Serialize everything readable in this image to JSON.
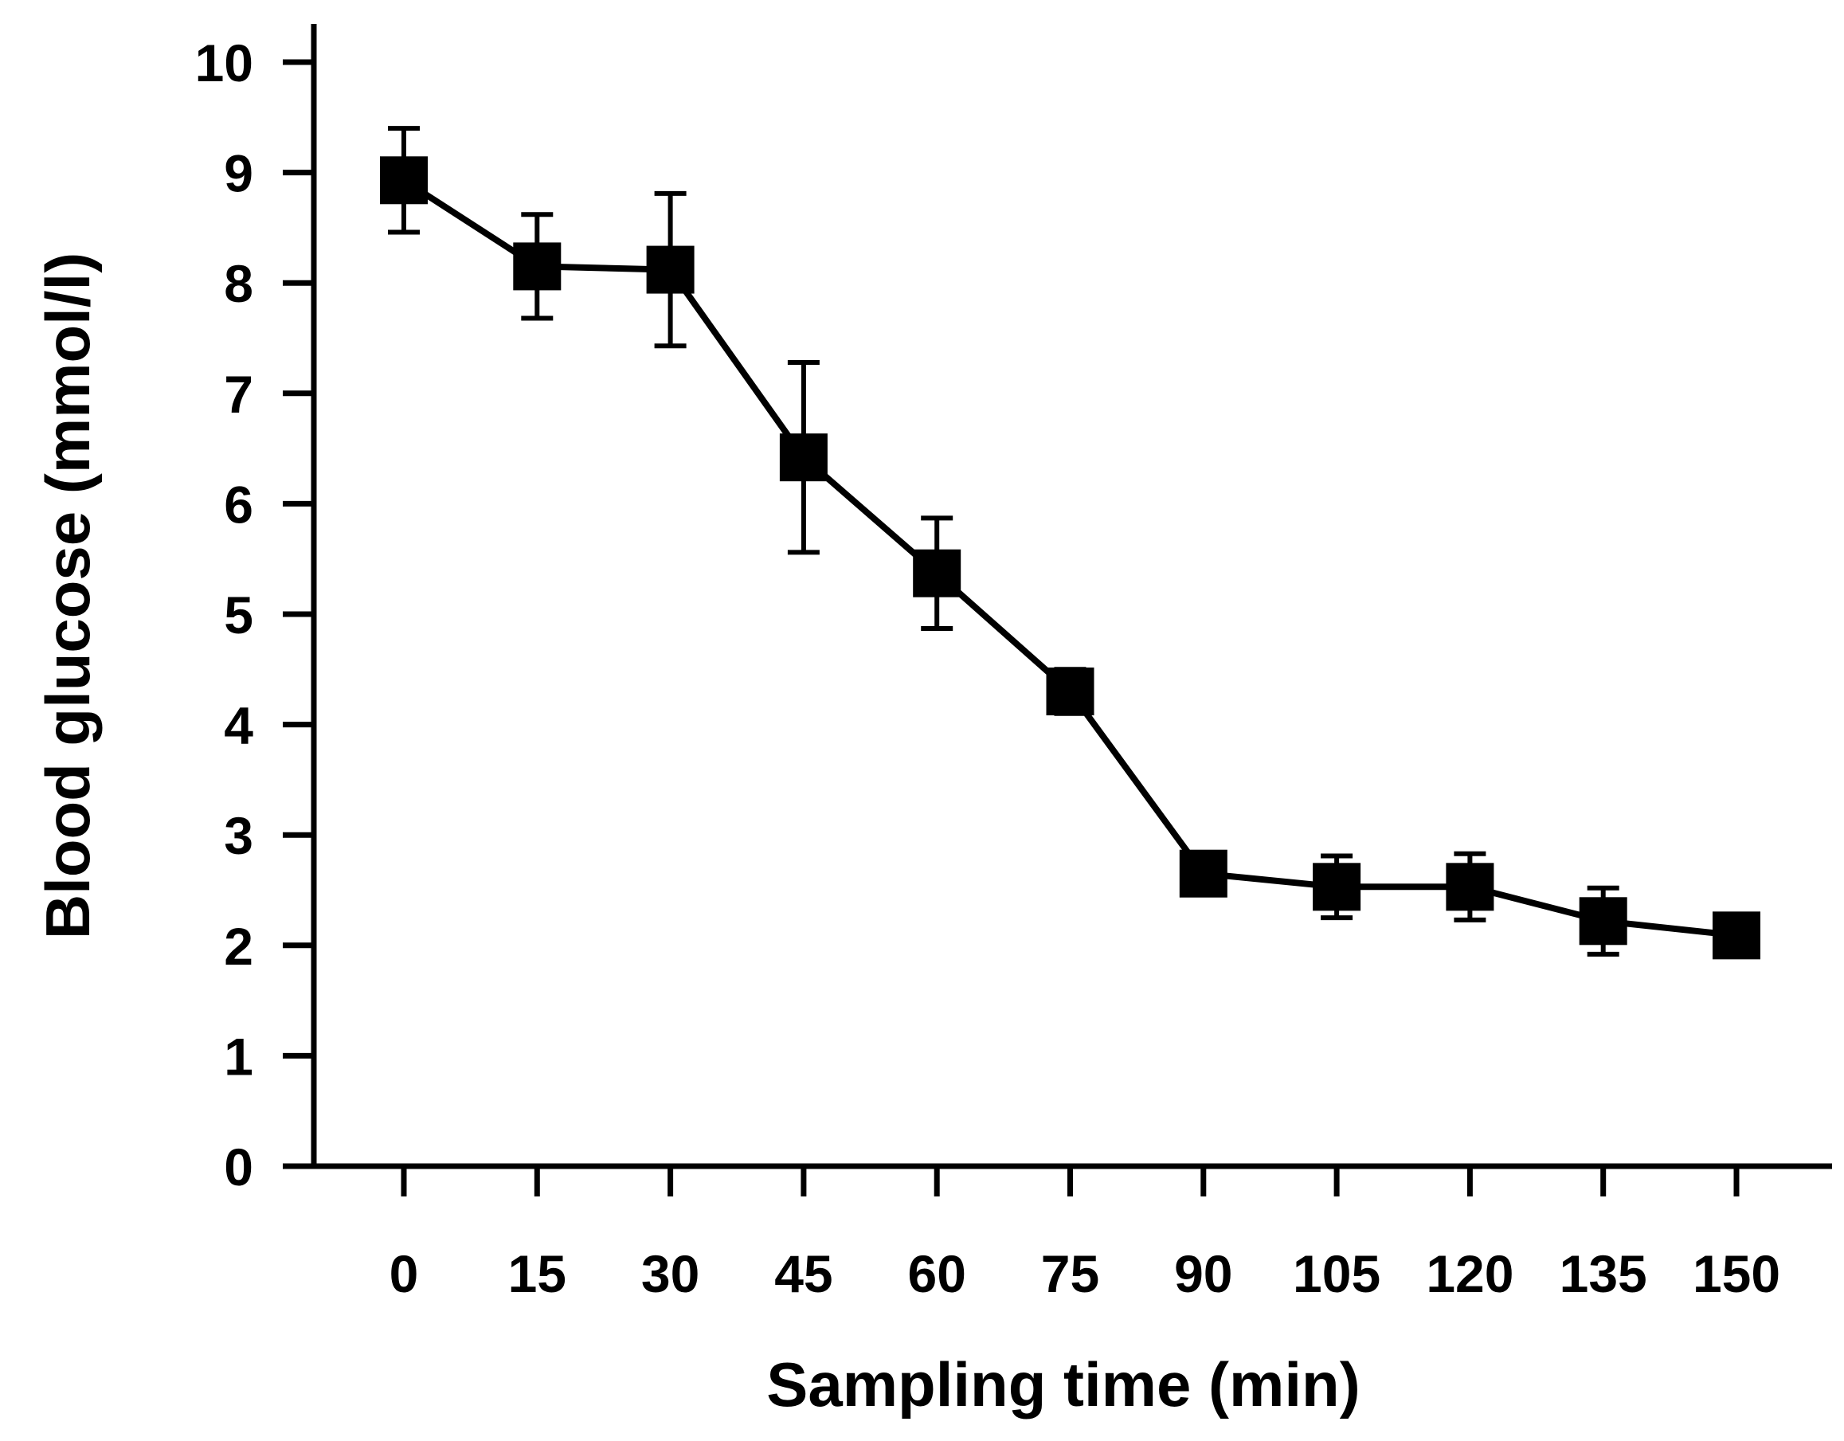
{
  "chart_data": {
    "type": "line",
    "title": "",
    "xlabel": "Sampling time (min)",
    "ylabel": "Blood glucose (mmol/l)",
    "x": [
      0,
      15,
      30,
      45,
      60,
      75,
      90,
      105,
      120,
      135,
      150
    ],
    "x_tick_labels": [
      "0",
      "15",
      "30",
      "45",
      "60",
      "75",
      "90",
      "105",
      "120",
      "135",
      "150"
    ],
    "y_ticks": [
      0,
      1,
      2,
      3,
      4,
      5,
      6,
      7,
      8,
      9,
      10
    ],
    "y_tick_labels": [
      "0",
      "1",
      "2",
      "3",
      "4",
      "5",
      "6",
      "7",
      "8",
      "9",
      "10"
    ],
    "ylim": [
      0,
      10
    ],
    "grid": false,
    "series": [
      {
        "name": "Blood glucose",
        "marker": "square",
        "color": "#000000",
        "values": [
          8.93,
          8.15,
          8.12,
          6.42,
          5.37,
          4.3,
          2.65,
          2.53,
          2.53,
          2.22,
          2.09
        ],
        "error": [
          0.47,
          0.47,
          0.69,
          0.86,
          0.5,
          0.2,
          0.12,
          0.28,
          0.3,
          0.3,
          0.15
        ]
      }
    ]
  }
}
